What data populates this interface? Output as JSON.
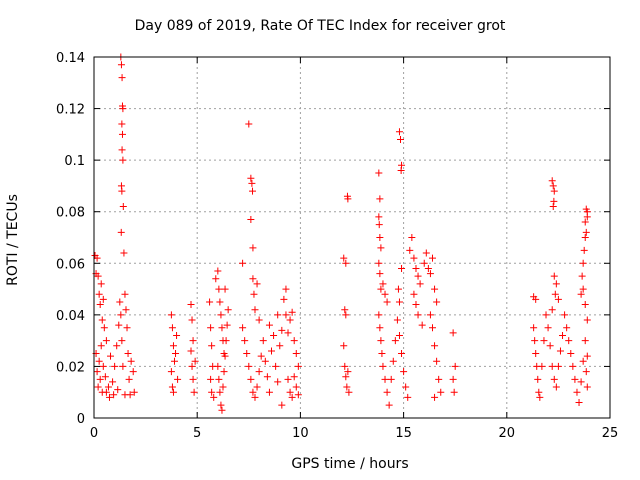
{
  "chart_data": {
    "type": "scatter",
    "title": "Day 089 of 2019, Rate Of TEC Index for receiver grot",
    "xlabel": "GPS time / hours",
    "ylabel": "ROTI / TECUs",
    "xlim": [
      0,
      25
    ],
    "ylim": [
      0,
      0.14
    ],
    "xticks": [
      "0",
      "5",
      "10",
      "15",
      "20",
      "25"
    ],
    "yticks": [
      "0",
      "0.02",
      "0.04",
      "0.06",
      "0.08",
      "0.1",
      "0.12",
      "0.14"
    ],
    "grid": true,
    "marker": "+",
    "color": "#ff0000",
    "series": [
      {
        "points": [
          [
            0.05,
            0.063
          ],
          [
            0.1,
            0.056
          ],
          [
            0.15,
            0.062
          ],
          [
            0.2,
            0.055
          ],
          [
            0.25,
            0.048
          ],
          [
            0.3,
            0.044
          ],
          [
            0.35,
            0.052
          ],
          [
            0.4,
            0.038
          ],
          [
            0.45,
            0.046
          ],
          [
            0.5,
            0.035
          ],
          [
            0.1,
            0.025
          ],
          [
            0.15,
            0.018
          ],
          [
            0.2,
            0.012
          ],
          [
            0.25,
            0.022
          ],
          [
            0.3,
            0.015
          ],
          [
            0.35,
            0.028
          ],
          [
            0.4,
            0.01
          ],
          [
            0.45,
            0.02
          ],
          [
            0.55,
            0.016
          ],
          [
            0.6,
            0.03
          ],
          [
            0.7,
            0.012
          ],
          [
            0.8,
            0.024
          ],
          [
            0.9,
            0.014
          ],
          [
            1.0,
            0.02
          ],
          [
            1.1,
            0.028
          ],
          [
            1.2,
            0.036
          ],
          [
            1.25,
            0.045
          ],
          [
            1.3,
            0.04
          ],
          [
            1.35,
            0.03
          ],
          [
            1.4,
            0.02
          ],
          [
            1.3,
            0.14
          ],
          [
            1.33,
            0.137
          ],
          [
            1.36,
            0.132
          ],
          [
            1.38,
            0.121
          ],
          [
            1.4,
            0.12
          ],
          [
            1.35,
            0.114
          ],
          [
            1.38,
            0.11
          ],
          [
            1.36,
            0.104
          ],
          [
            1.4,
            0.1
          ],
          [
            1.33,
            0.09
          ],
          [
            1.35,
            0.088
          ],
          [
            1.42,
            0.082
          ],
          [
            1.32,
            0.072
          ],
          [
            1.45,
            0.064
          ],
          [
            1.5,
            0.048
          ],
          [
            1.55,
            0.042
          ],
          [
            1.6,
            0.035
          ],
          [
            1.65,
            0.025
          ],
          [
            1.7,
            0.015
          ],
          [
            1.8,
            0.022
          ],
          [
            1.9,
            0.018
          ],
          [
            1.95,
            0.01
          ],
          [
            0.6,
            0.01
          ],
          [
            0.75,
            0.008
          ],
          [
            0.95,
            0.009
          ],
          [
            1.15,
            0.011
          ],
          [
            1.5,
            0.009
          ],
          [
            1.75,
            0.009
          ],
          [
            3.75,
            0.04
          ],
          [
            3.8,
            0.035
          ],
          [
            3.85,
            0.028
          ],
          [
            3.9,
            0.022
          ],
          [
            3.75,
            0.018
          ],
          [
            3.8,
            0.012
          ],
          [
            3.85,
            0.01
          ],
          [
            3.95,
            0.025
          ],
          [
            4.0,
            0.032
          ],
          [
            4.05,
            0.015
          ],
          [
            4.7,
            0.044
          ],
          [
            4.75,
            0.038
          ],
          [
            4.8,
            0.03
          ],
          [
            4.7,
            0.026
          ],
          [
            4.75,
            0.02
          ],
          [
            4.8,
            0.015
          ],
          [
            4.85,
            0.01
          ],
          [
            4.9,
            0.022
          ],
          [
            5.6,
            0.045
          ],
          [
            5.65,
            0.035
          ],
          [
            5.7,
            0.028
          ],
          [
            5.75,
            0.02
          ],
          [
            5.65,
            0.015
          ],
          [
            5.7,
            0.01
          ],
          [
            5.8,
            0.008
          ],
          [
            5.9,
            0.054
          ],
          [
            6.0,
            0.057
          ],
          [
            6.05,
            0.05
          ],
          [
            6.1,
            0.045
          ],
          [
            6.15,
            0.04
          ],
          [
            6.2,
            0.035
          ],
          [
            6.25,
            0.03
          ],
          [
            6.3,
            0.025
          ],
          [
            6.0,
            0.02
          ],
          [
            6.05,
            0.015
          ],
          [
            6.1,
            0.01
          ],
          [
            6.15,
            0.005
          ],
          [
            6.2,
            0.003
          ],
          [
            6.25,
            0.012
          ],
          [
            6.3,
            0.018
          ],
          [
            6.35,
            0.024
          ],
          [
            6.4,
            0.03
          ],
          [
            6.45,
            0.036
          ],
          [
            6.5,
            0.042
          ],
          [
            6.35,
            0.05
          ],
          [
            7.2,
            0.06
          ],
          [
            7.5,
            0.114
          ],
          [
            7.6,
            0.093
          ],
          [
            7.65,
            0.091
          ],
          [
            7.68,
            0.088
          ],
          [
            7.6,
            0.077
          ],
          [
            7.7,
            0.066
          ],
          [
            7.7,
            0.054
          ],
          [
            7.75,
            0.048
          ],
          [
            7.8,
            0.042
          ],
          [
            7.2,
            0.035
          ],
          [
            7.3,
            0.03
          ],
          [
            7.4,
            0.025
          ],
          [
            7.5,
            0.02
          ],
          [
            7.6,
            0.015
          ],
          [
            7.7,
            0.01
          ],
          [
            7.8,
            0.008
          ],
          [
            7.9,
            0.012
          ],
          [
            8.0,
            0.018
          ],
          [
            8.1,
            0.024
          ],
          [
            8.2,
            0.03
          ],
          [
            8.3,
            0.022
          ],
          [
            8.4,
            0.016
          ],
          [
            8.5,
            0.01
          ],
          [
            8.6,
            0.026
          ],
          [
            8.7,
            0.032
          ],
          [
            8.8,
            0.02
          ],
          [
            8.9,
            0.014
          ],
          [
            9.0,
            0.028
          ],
          [
            9.1,
            0.034
          ],
          [
            9.2,
            0.046
          ],
          [
            9.3,
            0.04
          ],
          [
            9.4,
            0.033
          ],
          [
            9.5,
            0.038
          ],
          [
            9.6,
            0.041
          ],
          [
            9.7,
            0.03
          ],
          [
            9.8,
            0.025
          ],
          [
            9.9,
            0.02
          ],
          [
            9.4,
            0.015
          ],
          [
            9.5,
            0.01
          ],
          [
            9.6,
            0.008
          ],
          [
            9.7,
            0.016
          ],
          [
            9.8,
            0.012
          ],
          [
            9.9,
            0.009
          ],
          [
            9.3,
            0.05
          ],
          [
            7.9,
            0.052
          ],
          [
            8.0,
            0.038
          ],
          [
            8.5,
            0.036
          ],
          [
            8.9,
            0.04
          ],
          [
            9.1,
            0.005
          ],
          [
            12.1,
            0.062
          ],
          [
            12.2,
            0.06
          ],
          [
            12.3,
            0.085
          ],
          [
            12.28,
            0.086
          ],
          [
            12.15,
            0.042
          ],
          [
            12.2,
            0.04
          ],
          [
            12.1,
            0.028
          ],
          [
            12.15,
            0.02
          ],
          [
            12.2,
            0.016
          ],
          [
            12.25,
            0.012
          ],
          [
            12.3,
            0.018
          ],
          [
            12.35,
            0.01
          ],
          [
            13.8,
            0.095
          ],
          [
            13.85,
            0.085
          ],
          [
            13.8,
            0.078
          ],
          [
            13.82,
            0.075
          ],
          [
            13.85,
            0.07
          ],
          [
            13.9,
            0.066
          ],
          [
            13.8,
            0.06
          ],
          [
            13.85,
            0.056
          ],
          [
            13.9,
            0.05
          ],
          [
            14.0,
            0.052
          ],
          [
            14.1,
            0.048
          ],
          [
            14.2,
            0.045
          ],
          [
            13.8,
            0.04
          ],
          [
            13.85,
            0.035
          ],
          [
            13.9,
            0.03
          ],
          [
            13.95,
            0.025
          ],
          [
            14.0,
            0.02
          ],
          [
            14.1,
            0.015
          ],
          [
            14.2,
            0.01
          ],
          [
            14.3,
            0.005
          ],
          [
            14.4,
            0.015
          ],
          [
            14.5,
            0.022
          ],
          [
            14.6,
            0.03
          ],
          [
            14.7,
            0.038
          ],
          [
            14.8,
            0.032
          ],
          [
            14.9,
            0.025
          ],
          [
            15.0,
            0.018
          ],
          [
            15.1,
            0.012
          ],
          [
            15.2,
            0.008
          ],
          [
            14.9,
            0.058
          ],
          [
            14.8,
            0.111
          ],
          [
            14.85,
            0.108
          ],
          [
            14.9,
            0.098
          ],
          [
            14.88,
            0.096
          ],
          [
            14.75,
            0.05
          ],
          [
            14.8,
            0.045
          ],
          [
            15.4,
            0.07
          ],
          [
            15.3,
            0.065
          ],
          [
            15.5,
            0.062
          ],
          [
            15.6,
            0.058
          ],
          [
            15.7,
            0.055
          ],
          [
            15.8,
            0.052
          ],
          [
            15.5,
            0.048
          ],
          [
            15.6,
            0.044
          ],
          [
            15.7,
            0.04
          ],
          [
            15.9,
            0.036
          ],
          [
            16.0,
            0.06
          ],
          [
            16.1,
            0.064
          ],
          [
            16.2,
            0.058
          ],
          [
            16.3,
            0.056
          ],
          [
            16.4,
            0.062
          ],
          [
            16.5,
            0.05
          ],
          [
            16.6,
            0.045
          ],
          [
            16.3,
            0.04
          ],
          [
            16.4,
            0.035
          ],
          [
            16.5,
            0.028
          ],
          [
            16.6,
            0.022
          ],
          [
            16.7,
            0.015
          ],
          [
            16.8,
            0.01
          ],
          [
            16.5,
            0.008
          ],
          [
            17.4,
            0.033
          ],
          [
            17.5,
            0.02
          ],
          [
            17.4,
            0.015
          ],
          [
            17.45,
            0.01
          ],
          [
            21.3,
            0.047
          ],
          [
            21.4,
            0.046
          ],
          [
            21.3,
            0.035
          ],
          [
            21.35,
            0.03
          ],
          [
            21.4,
            0.025
          ],
          [
            21.45,
            0.02
          ],
          [
            21.5,
            0.015
          ],
          [
            21.55,
            0.01
          ],
          [
            21.6,
            0.008
          ],
          [
            21.7,
            0.02
          ],
          [
            21.8,
            0.03
          ],
          [
            21.9,
            0.04
          ],
          [
            22.0,
            0.035
          ],
          [
            22.1,
            0.028
          ],
          [
            22.2,
            0.02
          ],
          [
            22.3,
            0.015
          ],
          [
            22.4,
            0.012
          ],
          [
            22.5,
            0.02
          ],
          [
            22.6,
            0.026
          ],
          [
            22.7,
            0.032
          ],
          [
            22.2,
            0.092
          ],
          [
            22.25,
            0.09
          ],
          [
            22.3,
            0.088
          ],
          [
            22.28,
            0.084
          ],
          [
            22.25,
            0.082
          ],
          [
            22.3,
            0.055
          ],
          [
            22.4,
            0.052
          ],
          [
            22.5,
            0.046
          ],
          [
            22.2,
            0.042
          ],
          [
            22.35,
            0.048
          ],
          [
            22.8,
            0.04
          ],
          [
            22.9,
            0.035
          ],
          [
            23.0,
            0.03
          ],
          [
            23.1,
            0.025
          ],
          [
            23.2,
            0.02
          ],
          [
            23.3,
            0.015
          ],
          [
            23.4,
            0.01
          ],
          [
            23.5,
            0.006
          ],
          [
            23.6,
            0.014
          ],
          [
            23.7,
            0.022
          ],
          [
            23.6,
            0.048
          ],
          [
            23.65,
            0.055
          ],
          [
            23.7,
            0.06
          ],
          [
            23.75,
            0.065
          ],
          [
            23.8,
            0.07
          ],
          [
            23.85,
            0.072
          ],
          [
            23.8,
            0.076
          ],
          [
            23.9,
            0.08
          ],
          [
            23.85,
            0.081
          ],
          [
            23.9,
            0.078
          ],
          [
            23.7,
            0.05
          ],
          [
            23.8,
            0.044
          ],
          [
            23.9,
            0.038
          ],
          [
            23.8,
            0.03
          ],
          [
            23.9,
            0.024
          ],
          [
            23.85,
            0.018
          ],
          [
            23.9,
            0.012
          ]
        ]
      }
    ]
  }
}
